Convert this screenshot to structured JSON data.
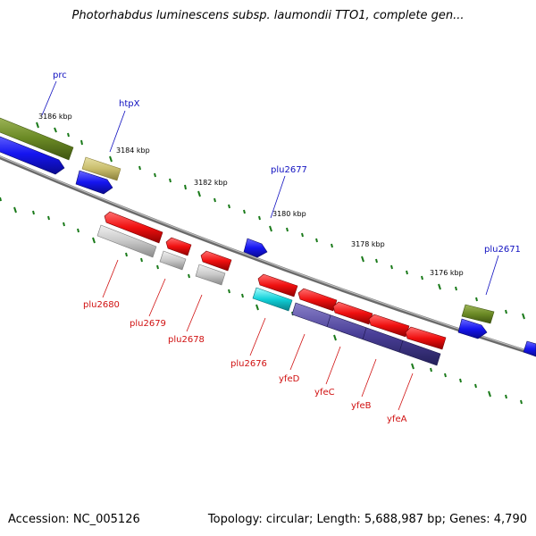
{
  "title": "Photorhabdus luminescens subsp. laumondii TTO1, complete gen...",
  "footer": {
    "accession": "Accession: NC_005126",
    "summary": "Topology: circular; Length: 5,688,987 bp; Genes: 4,790"
  },
  "colors": {
    "forward_label": "#1010c0",
    "reverse_label": "#d01010",
    "backbone": "#808080",
    "tick": "#1a7a1a"
  },
  "ruler": [
    "3186 kbp",
    "3184 kbp",
    "3182 kbp",
    "3180 kbp",
    "3178 kbp",
    "3176 kbp"
  ],
  "forward_genes": [
    "prc",
    "htpX",
    "plu2677",
    "plu2671"
  ],
  "reverse_genes": [
    "plu2680",
    "plu2679",
    "plu2678",
    "plu2676",
    "yfeD",
    "yfeC",
    "yfeB",
    "yfeA"
  ]
}
